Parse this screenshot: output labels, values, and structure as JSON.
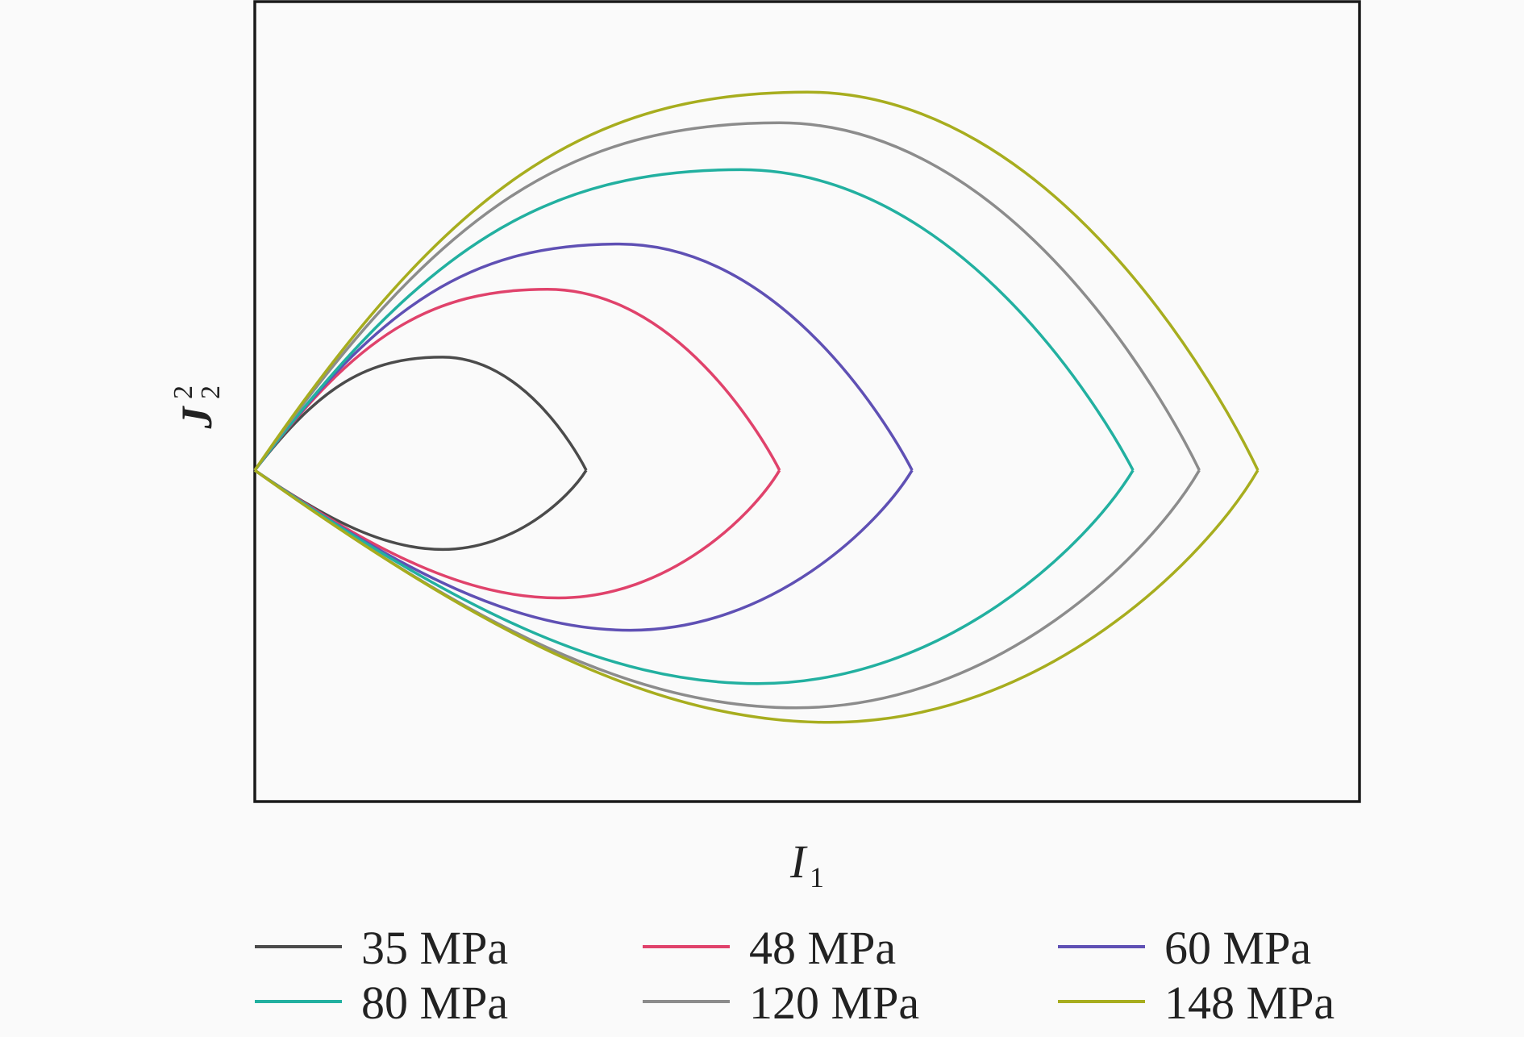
{
  "chart_data": {
    "type": "line",
    "title": "",
    "xlabel": {
      "base": "I",
      "sub": "1"
    },
    "ylabel": {
      "base": "J",
      "sub": "2",
      "sup": "2"
    },
    "xlim": [
      0,
      1
    ],
    "ylim": [
      -0.41,
      0.58
    ],
    "grid": false,
    "legend_position": "bottom",
    "series": [
      {
        "name": "35 MPa",
        "color": "#4b4b4b",
        "tip": 0.3,
        "upper_peak": 0.14,
        "upper_peak_x": 0.17,
        "lower_trough": -0.098,
        "lower_trough_x": 0.17
      },
      {
        "name": "48 MPa",
        "color": "#e0426b",
        "tip": 0.475,
        "upper_peak": 0.224,
        "upper_peak_x": 0.265,
        "lower_trough": -0.158,
        "lower_trough_x": 0.275
      },
      {
        "name": "60 MPa",
        "color": "#5f50b4",
        "tip": 0.595,
        "upper_peak": 0.28,
        "upper_peak_x": 0.33,
        "lower_trough": -0.198,
        "lower_trough_x": 0.34
      },
      {
        "name": "80 MPa",
        "color": "#22b0a0",
        "tip": 0.795,
        "upper_peak": 0.372,
        "upper_peak_x": 0.44,
        "lower_trough": -0.264,
        "lower_trough_x": 0.455
      },
      {
        "name": "120 MPa",
        "color": "#8c8c8c",
        "tip": 0.855,
        "upper_peak": 0.43,
        "upper_peak_x": 0.475,
        "lower_trough": -0.294,
        "lower_trough_x": 0.49
      },
      {
        "name": "148 MPa",
        "color": "#a7ad1e",
        "tip": 0.908,
        "upper_peak": 0.468,
        "upper_peak_x": 0.5,
        "lower_trough": -0.312,
        "lower_trough_x": 0.52
      }
    ]
  }
}
